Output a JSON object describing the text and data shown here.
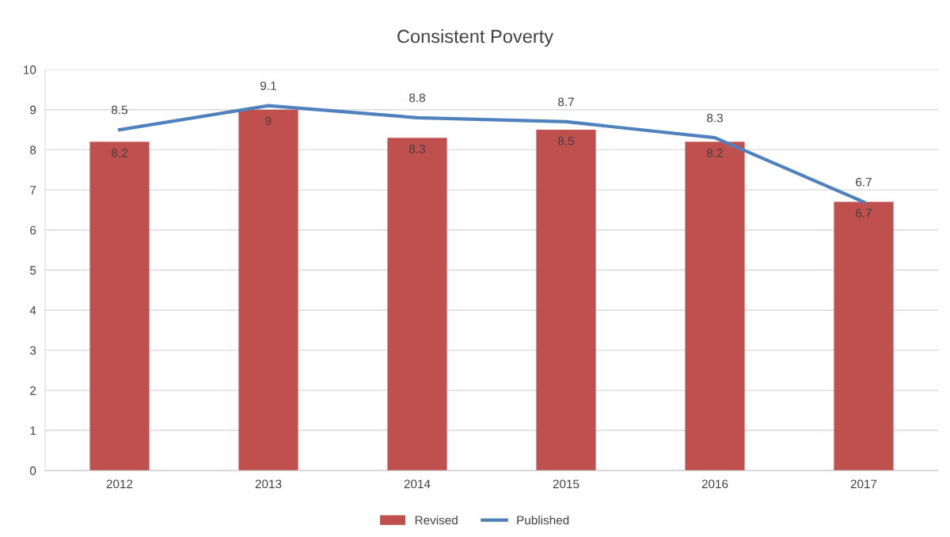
{
  "chart_data": {
    "type": "bar",
    "title": "Consistent Poverty",
    "categories": [
      "2012",
      "2013",
      "2014",
      "2015",
      "2016",
      "2017"
    ],
    "series": [
      {
        "name": "Revised",
        "color": "#c0504d",
        "values": [
          8.2,
          9,
          8.3,
          8.5,
          8.2,
          6.7
        ]
      },
      {
        "name": "Published",
        "type": "line",
        "color": "#4f81bd",
        "values": [
          8.5,
          9.1,
          8.8,
          8.7,
          8.3,
          6.7
        ]
      }
    ],
    "ylim": [
      0,
      10
    ],
    "yticks": [
      0,
      1,
      2,
      3,
      4,
      5,
      6,
      7,
      8,
      9,
      10
    ],
    "grid": "y",
    "legend": "bottom",
    "data_labels": true,
    "marker": "none",
    "line_style": "solid"
  }
}
